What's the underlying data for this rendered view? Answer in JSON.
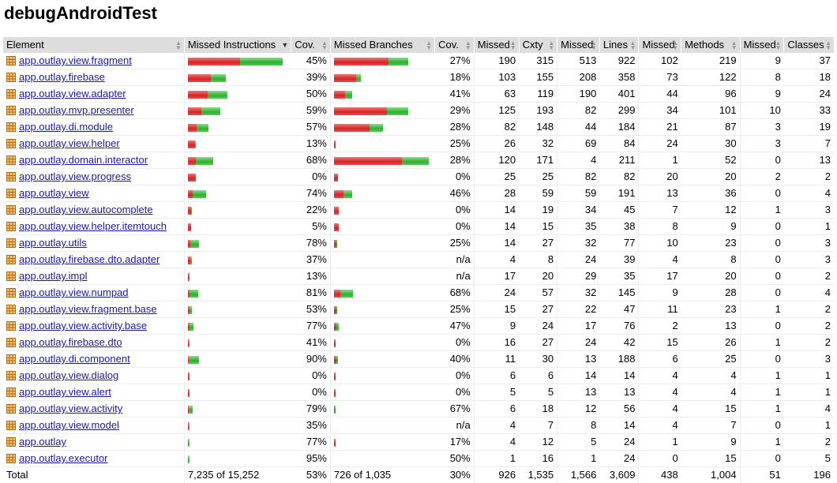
{
  "title": "debugAndroidTest",
  "colors": {
    "missed_bar": "#e03a3a",
    "covered_bar": "#3fbf3f",
    "header_bg": "#dddddd",
    "link": "#1a1aa6"
  },
  "headers": [
    "Element",
    "Missed Instructions",
    "Cov.",
    "Missed Branches",
    "Cov.",
    "Missed",
    "Cxty",
    "Missed",
    "Lines",
    "Missed",
    "Methods",
    "Missed",
    "Classes"
  ],
  "sort_column": "Missed Instructions",
  "rows": [
    {
      "name": "app.outlay.view.fragment",
      "icon": "package-icon",
      "instr": {
        "missed": 0.55,
        "covered": 0.45
      },
      "instr_cov": "45%",
      "br": {
        "missed": 0.73,
        "covered": 0.27
      },
      "br_cov": "27%",
      "cx_missed": "190",
      "cx": "315",
      "ln_missed": "513",
      "ln": "922",
      "mt_missed": "102",
      "mt": "219",
      "cl_missed": "9",
      "cl": "37"
    },
    {
      "name": "app.outlay.firebase",
      "icon": "package-icon",
      "instr": {
        "missed": 0.61,
        "covered": 0.39
      },
      "instr_cov": "39%",
      "br": {
        "missed": 0.82,
        "covered": 0.18
      },
      "br_cov": "18%",
      "cx_missed": "103",
      "cx": "155",
      "ln_missed": "208",
      "ln": "358",
      "mt_missed": "73",
      "mt": "122",
      "cl_missed": "8",
      "cl": "18"
    },
    {
      "name": "app.outlay.view.adapter",
      "icon": "package-icon",
      "instr": {
        "missed": 0.5,
        "covered": 0.5
      },
      "instr_cov": "50%",
      "br": {
        "missed": 0.59,
        "covered": 0.41
      },
      "br_cov": "41%",
      "cx_missed": "63",
      "cx": "119",
      "ln_missed": "190",
      "ln": "401",
      "mt_missed": "44",
      "mt": "96",
      "cl_missed": "9",
      "cl": "24"
    },
    {
      "name": "app.outlay.mvp.presenter",
      "icon": "package-icon",
      "instr": {
        "missed": 0.41,
        "covered": 0.59
      },
      "instr_cov": "59%",
      "br": {
        "missed": 0.71,
        "covered": 0.29
      },
      "br_cov": "29%",
      "cx_missed": "125",
      "cx": "193",
      "ln_missed": "82",
      "ln": "299",
      "mt_missed": "34",
      "mt": "101",
      "cl_missed": "10",
      "cl": "33"
    },
    {
      "name": "app.outlay.di.module",
      "icon": "package-icon",
      "instr": {
        "missed": 0.43,
        "covered": 0.57
      },
      "instr_cov": "57%",
      "br": {
        "missed": 0.72,
        "covered": 0.28
      },
      "br_cov": "28%",
      "cx_missed": "82",
      "cx": "148",
      "ln_missed": "44",
      "ln": "184",
      "mt_missed": "21",
      "mt": "87",
      "cl_missed": "3",
      "cl": "19"
    },
    {
      "name": "app.outlay.view.helper",
      "icon": "package-icon",
      "instr": {
        "missed": 0.87,
        "covered": 0.13
      },
      "instr_cov": "13%",
      "br": {
        "missed": 0.75,
        "covered": 0.25
      },
      "br_cov": "25%",
      "cx_missed": "26",
      "cx": "32",
      "ln_missed": "69",
      "ln": "84",
      "mt_missed": "24",
      "mt": "30",
      "cl_missed": "3",
      "cl": "7"
    },
    {
      "name": "app.outlay.domain.interactor",
      "icon": "package-icon",
      "instr": {
        "missed": 0.32,
        "covered": 0.68
      },
      "instr_cov": "68%",
      "br": {
        "missed": 0.72,
        "covered": 0.28
      },
      "br_cov": "28%",
      "cx_missed": "120",
      "cx": "171",
      "ln_missed": "4",
      "ln": "211",
      "mt_missed": "1",
      "mt": "52",
      "cl_missed": "0",
      "cl": "13"
    },
    {
      "name": "app.outlay.view.progress",
      "icon": "package-icon",
      "instr": {
        "missed": 1.0,
        "covered": 0.0
      },
      "instr_cov": "0%",
      "br": {
        "missed": 1.0,
        "covered": 0.0
      },
      "br_cov": "0%",
      "cx_missed": "25",
      "cx": "25",
      "ln_missed": "82",
      "ln": "82",
      "mt_missed": "20",
      "mt": "20",
      "cl_missed": "2",
      "cl": "2"
    },
    {
      "name": "app.outlay.view",
      "icon": "package-icon",
      "instr": {
        "missed": 0.26,
        "covered": 0.74
      },
      "instr_cov": "74%",
      "br": {
        "missed": 0.54,
        "covered": 0.46
      },
      "br_cov": "46%",
      "cx_missed": "28",
      "cx": "59",
      "ln_missed": "59",
      "ln": "191",
      "mt_missed": "13",
      "mt": "36",
      "cl_missed": "0",
      "cl": "4"
    },
    {
      "name": "app.outlay.view.autocomplete",
      "icon": "package-icon",
      "instr": {
        "missed": 0.78,
        "covered": 0.22
      },
      "instr_cov": "22%",
      "br": {
        "missed": 1.0,
        "covered": 0.0
      },
      "br_cov": "0%",
      "cx_missed": "14",
      "cx": "19",
      "ln_missed": "34",
      "ln": "45",
      "mt_missed": "7",
      "mt": "12",
      "cl_missed": "1",
      "cl": "3"
    },
    {
      "name": "app.outlay.view.helper.itemtouch",
      "icon": "package-icon",
      "instr": {
        "missed": 0.95,
        "covered": 0.05
      },
      "instr_cov": "5%",
      "br": {
        "missed": 1.0,
        "covered": 0.0
      },
      "br_cov": "0%",
      "cx_missed": "14",
      "cx": "15",
      "ln_missed": "35",
      "ln": "38",
      "mt_missed": "8",
      "mt": "9",
      "cl_missed": "0",
      "cl": "1"
    },
    {
      "name": "app.outlay.utils",
      "icon": "package-icon",
      "instr": {
        "missed": 0.22,
        "covered": 0.78
      },
      "instr_cov": "78%",
      "br": {
        "missed": 0.75,
        "covered": 0.25
      },
      "br_cov": "25%",
      "cx_missed": "14",
      "cx": "27",
      "ln_missed": "32",
      "ln": "77",
      "mt_missed": "10",
      "mt": "23",
      "cl_missed": "0",
      "cl": "3"
    },
    {
      "name": "app.outlay.firebase.dto.adapter",
      "icon": "package-icon",
      "instr": {
        "missed": 0.63,
        "covered": 0.37
      },
      "instr_cov": "37%",
      "br": null,
      "br_cov": "n/a",
      "cx_missed": "4",
      "cx": "8",
      "ln_missed": "24",
      "ln": "39",
      "mt_missed": "4",
      "mt": "8",
      "cl_missed": "0",
      "cl": "3"
    },
    {
      "name": "app.outlay.impl",
      "icon": "package-icon",
      "instr": {
        "missed": 0.87,
        "covered": 0.13
      },
      "instr_cov": "13%",
      "br": null,
      "br_cov": "n/a",
      "cx_missed": "17",
      "cx": "20",
      "ln_missed": "29",
      "ln": "35",
      "mt_missed": "17",
      "mt": "20",
      "cl_missed": "0",
      "cl": "2"
    },
    {
      "name": "app.outlay.view.numpad",
      "icon": "package-icon",
      "instr": {
        "missed": 0.19,
        "covered": 0.81
      },
      "instr_cov": "81%",
      "br": {
        "missed": 0.32,
        "covered": 0.68
      },
      "br_cov": "68%",
      "cx_missed": "24",
      "cx": "57",
      "ln_missed": "32",
      "ln": "145",
      "mt_missed": "9",
      "mt": "28",
      "cl_missed": "0",
      "cl": "4"
    },
    {
      "name": "app.outlay.view.fragment.base",
      "icon": "package-icon",
      "instr": {
        "missed": 0.47,
        "covered": 0.53
      },
      "instr_cov": "53%",
      "br": {
        "missed": 0.75,
        "covered": 0.25
      },
      "br_cov": "25%",
      "cx_missed": "15",
      "cx": "27",
      "ln_missed": "22",
      "ln": "47",
      "mt_missed": "11",
      "mt": "23",
      "cl_missed": "1",
      "cl": "2"
    },
    {
      "name": "app.outlay.view.activity.base",
      "icon": "package-icon",
      "instr": {
        "missed": 0.23,
        "covered": 0.77
      },
      "instr_cov": "77%",
      "br": {
        "missed": 0.53,
        "covered": 0.47
      },
      "br_cov": "47%",
      "cx_missed": "9",
      "cx": "24",
      "ln_missed": "17",
      "ln": "76",
      "mt_missed": "2",
      "mt": "13",
      "cl_missed": "0",
      "cl": "2"
    },
    {
      "name": "app.outlay.firebase.dto",
      "icon": "package-icon",
      "instr": {
        "missed": 0.59,
        "covered": 0.41
      },
      "instr_cov": "41%",
      "br": {
        "missed": 1.0,
        "covered": 0.0
      },
      "br_cov": "0%",
      "cx_missed": "16",
      "cx": "27",
      "ln_missed": "24",
      "ln": "42",
      "mt_missed": "15",
      "mt": "26",
      "cl_missed": "1",
      "cl": "2"
    },
    {
      "name": "app.outlay.di.component",
      "icon": "package-icon",
      "instr": {
        "missed": 0.1,
        "covered": 0.9
      },
      "instr_cov": "90%",
      "br": {
        "missed": 0.6,
        "covered": 0.4
      },
      "br_cov": "40%",
      "cx_missed": "11",
      "cx": "30",
      "ln_missed": "13",
      "ln": "188",
      "mt_missed": "6",
      "mt": "25",
      "cl_missed": "0",
      "cl": "3"
    },
    {
      "name": "app.outlay.view.dialog",
      "icon": "package-icon",
      "instr": {
        "missed": 1.0,
        "covered": 0.0
      },
      "instr_cov": "0%",
      "br": {
        "missed": 1.0,
        "covered": 0.0
      },
      "br_cov": "0%",
      "cx_missed": "6",
      "cx": "6",
      "ln_missed": "14",
      "ln": "14",
      "mt_missed": "4",
      "mt": "4",
      "cl_missed": "1",
      "cl": "1"
    },
    {
      "name": "app.outlay.view.alert",
      "icon": "package-icon",
      "instr": {
        "missed": 1.0,
        "covered": 0.0
      },
      "instr_cov": "0%",
      "br": {
        "missed": 1.0,
        "covered": 0.0
      },
      "br_cov": "0%",
      "cx_missed": "5",
      "cx": "5",
      "ln_missed": "13",
      "ln": "13",
      "mt_missed": "4",
      "mt": "4",
      "cl_missed": "1",
      "cl": "1"
    },
    {
      "name": "app.outlay.view.activity",
      "icon": "package-icon",
      "instr": {
        "missed": 0.21,
        "covered": 0.79
      },
      "instr_cov": "79%",
      "br": {
        "missed": 0.33,
        "covered": 0.67
      },
      "br_cov": "67%",
      "cx_missed": "6",
      "cx": "18",
      "ln_missed": "12",
      "ln": "56",
      "mt_missed": "4",
      "mt": "15",
      "cl_missed": "1",
      "cl": "4"
    },
    {
      "name": "app.outlay.view.model",
      "icon": "package-icon",
      "instr": {
        "missed": 0.65,
        "covered": 0.35
      },
      "instr_cov": "35%",
      "br": null,
      "br_cov": "n/a",
      "cx_missed": "4",
      "cx": "7",
      "ln_missed": "8",
      "ln": "14",
      "mt_missed": "4",
      "mt": "7",
      "cl_missed": "0",
      "cl": "1"
    },
    {
      "name": "app.outlay",
      "icon": "package-icon",
      "instr": {
        "missed": 0.23,
        "covered": 0.77
      },
      "instr_cov": "77%",
      "br": {
        "missed": 0.83,
        "covered": 0.17
      },
      "br_cov": "17%",
      "cx_missed": "4",
      "cx": "12",
      "ln_missed": "5",
      "ln": "24",
      "mt_missed": "1",
      "mt": "9",
      "cl_missed": "1",
      "cl": "2"
    },
    {
      "name": "app.outlay.executor",
      "icon": "package-icon",
      "instr": {
        "missed": 0.05,
        "covered": 0.95
      },
      "instr_cov": "95%",
      "br": null,
      "br_cov": "50%",
      "cx_missed": "1",
      "cx": "16",
      "ln_missed": "1",
      "ln": "24",
      "mt_missed": "0",
      "mt": "15",
      "cl_missed": "0",
      "cl": "5"
    }
  ],
  "total": {
    "label": "Total",
    "instr": "7,235 of 15,252",
    "instr_cov": "53%",
    "br": "726 of 1,035",
    "br_cov": "30%",
    "cx_missed": "926",
    "cx": "1,535",
    "ln_missed": "1,566",
    "ln": "3,609",
    "mt_missed": "438",
    "mt": "1,004",
    "cl_missed": "51",
    "cl": "196"
  }
}
